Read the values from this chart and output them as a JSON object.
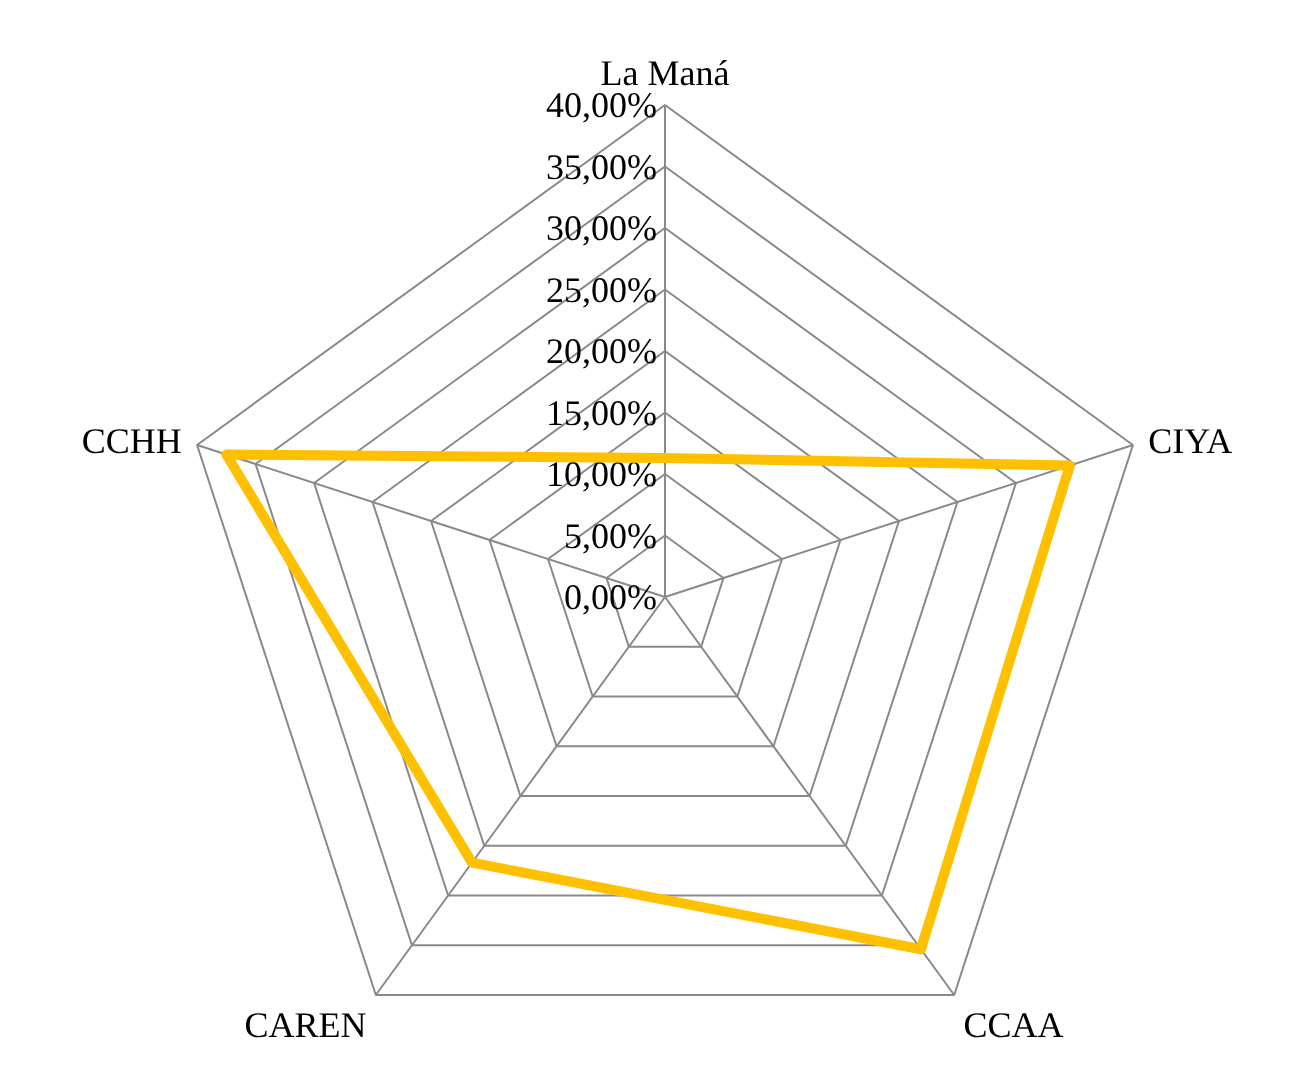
{
  "chart_data": {
    "type": "radar",
    "categories": [
      "La Maná",
      "CIYA",
      "CCAA",
      "CAREN",
      "CCHH"
    ],
    "ylim": [
      0,
      40
    ],
    "yticks": [
      {
        "value": 0,
        "label": "0,00%"
      },
      {
        "value": 5,
        "label": "5,00%"
      },
      {
        "value": 10,
        "label": "10,00%"
      },
      {
        "value": 15,
        "label": "15,00%"
      },
      {
        "value": 20,
        "label": "20,00%"
      },
      {
        "value": 25,
        "label": "25,00%"
      },
      {
        "value": 30,
        "label": "30,00%"
      },
      {
        "value": 35,
        "label": "35,00%"
      },
      {
        "value": 40,
        "label": "40,00%"
      }
    ],
    "series": [
      {
        "color": "#ffc000",
        "values": [
          11.3,
          34.6,
          35.4,
          26.7,
          37.5
        ]
      }
    ]
  }
}
